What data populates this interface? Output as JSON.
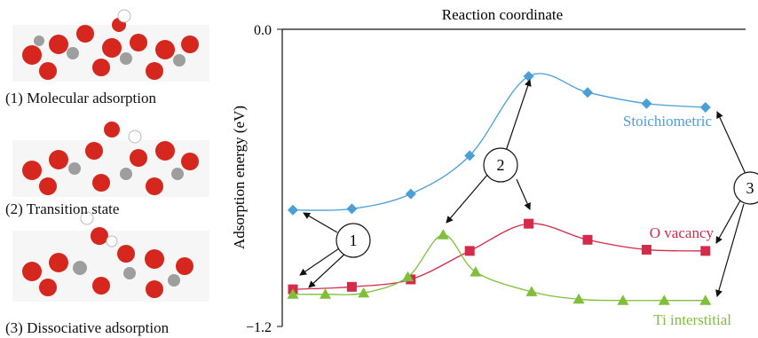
{
  "molecule_panels": [
    {
      "label": "(1) Molecular adsorption"
    },
    {
      "label": "(2) Transition state"
    },
    {
      "label": "(3) Dissociative adsorption"
    }
  ],
  "chart_data": {
    "type": "line",
    "title": "Reaction coordinate",
    "xlabel": "",
    "ylabel": "Adsorption energy (eV)",
    "ylim": [
      -1.2,
      0.0
    ],
    "yticks": [
      "0.0",
      "−1.2"
    ],
    "grid": false,
    "series": [
      {
        "name": "Stoichiometric",
        "color": "#4a9fd8",
        "marker": "diamond",
        "x": [
          0,
          1,
          2,
          3,
          4,
          5,
          6,
          7
        ],
        "y": [
          -0.73,
          -0.725,
          -0.665,
          -0.51,
          -0.19,
          -0.255,
          -0.3,
          -0.315
        ]
      },
      {
        "name": "O vacancy",
        "color": "#d62a4a",
        "marker": "square",
        "x": [
          0,
          1,
          2,
          3,
          4,
          5,
          6,
          7
        ],
        "y": [
          -1.05,
          -1.04,
          -1.01,
          -0.895,
          -0.785,
          -0.85,
          -0.89,
          -0.895
        ]
      },
      {
        "name": "Ti interstitial",
        "color": "#7fbf3a",
        "marker": "triangle",
        "x": [
          0,
          0.55,
          1.2,
          1.95,
          2.55,
          3.1,
          4.05,
          4.85,
          5.6,
          6.3,
          7
        ],
        "y": [
          -1.07,
          -1.07,
          -1.065,
          -1.0,
          -0.83,
          -0.98,
          -1.06,
          -1.09,
          -1.095,
          -1.095,
          -1.095
        ]
      }
    ],
    "annotations": [
      {
        "label": "1"
      },
      {
        "label": "2"
      },
      {
        "label": "3"
      }
    ]
  }
}
